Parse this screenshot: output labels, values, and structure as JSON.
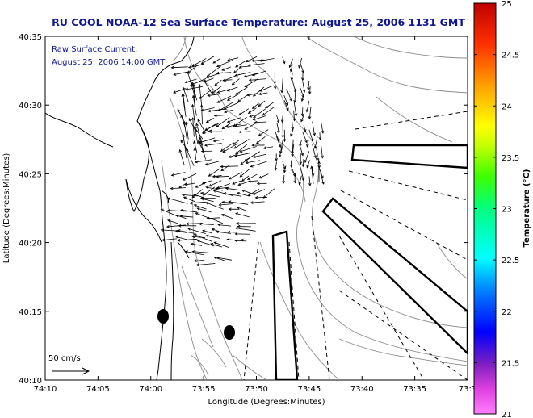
{
  "title": "RU COOL  NOAA-12  Sea Surface Temperature:  August 25, 2006 1131 GMT",
  "inset": {
    "line1": "Raw Surface Current:",
    "line2": "August 25, 2006 14:00 GMT"
  },
  "scale_label": "50 cm/s",
  "xaxis": {
    "label": "Longitude (Degrees:Minutes)",
    "ticks": [
      "74:10",
      "74:05",
      "74:00",
      "73:55",
      "73:50",
      "73:45",
      "73:40",
      "73:35",
      "73:3"
    ]
  },
  "yaxis": {
    "label": "Latitude (Degrees:Minutes)",
    "ticks": [
      "40:35",
      "40:30",
      "40:25",
      "40:20",
      "40:15",
      "40:10"
    ]
  },
  "colorbar": {
    "label": "Temperature (°C)",
    "ticks": [
      "25",
      "24.5",
      "24",
      "23.5",
      "23",
      "22.5",
      "22",
      "21.5",
      "21"
    ],
    "min": 21,
    "max": 25
  },
  "colors": {
    "title": "#101890",
    "contour": "#8c8c8c"
  }
}
